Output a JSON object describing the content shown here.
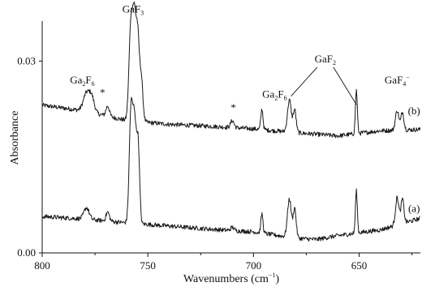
{
  "chart_data": {
    "type": "line",
    "xlabel": "Wavenumbers (cm",
    "xlabel_sup": "−1",
    "xlabel_close": ")",
    "ylabel": "Absorbance",
    "xlim": [
      800,
      621
    ],
    "ylim": [
      0.0,
      0.036
    ],
    "x_reversed": true,
    "grid": false,
    "legend": "none",
    "x_ticks": [
      800,
      750,
      700,
      650
    ],
    "x_tick_labels": [
      "800",
      "750",
      "700",
      "650"
    ],
    "y_ticks": [
      0.0,
      0.03
    ],
    "y_tick_labels": [
      "0.00",
      "0.03"
    ],
    "line_color": "#1a1a1a",
    "series": [
      {
        "label": "(b)",
        "baseline": [
          [
            800,
            0.0231
          ],
          [
            780,
            0.0222
          ],
          [
            760,
            0.0207
          ],
          [
            740,
            0.0201
          ],
          [
            720,
            0.0198
          ],
          [
            700,
            0.0194
          ],
          [
            680,
            0.0188
          ],
          [
            660,
            0.0183
          ],
          [
            640,
            0.0191
          ],
          [
            621,
            0.0193
          ]
        ],
        "peaks": [
          [
            779,
            0.0028,
            1.5
          ],
          [
            776.5,
            0.0022,
            1.2
          ],
          [
            769,
            0.0016,
            0.8
          ],
          [
            758,
            0.0152,
            0.9
          ],
          [
            756.3,
            0.0146,
            0.8
          ],
          [
            754.8,
            0.0118,
            0.7
          ],
          [
            753.2,
            0.0072,
            0.8
          ],
          [
            710,
            0.0011,
            0.8
          ],
          [
            696,
            0.0032,
            0.5
          ],
          [
            683,
            0.005,
            0.9
          ],
          [
            680.5,
            0.0035,
            0.7
          ],
          [
            651.3,
            0.0068,
            0.45
          ],
          [
            632,
            0.0031,
            0.8
          ],
          [
            629.5,
            0.0028,
            0.7
          ]
        ]
      },
      {
        "label": "(a)",
        "baseline": [
          [
            800,
            0.0057
          ],
          [
            780,
            0.0053
          ],
          [
            760,
            0.0047
          ],
          [
            740,
            0.0042
          ],
          [
            720,
            0.0037
          ],
          [
            700,
            0.0033
          ],
          [
            680,
            0.0023
          ],
          [
            670,
            0.0021
          ],
          [
            660,
            0.0027
          ],
          [
            640,
            0.0036
          ],
          [
            621,
            0.0054
          ]
        ],
        "peaks": [
          [
            779,
            0.0018,
            1.2
          ],
          [
            769,
            0.0014,
            0.8
          ],
          [
            758,
            0.0173,
            0.8
          ],
          [
            756.3,
            0.0155,
            0.8
          ],
          [
            754.6,
            0.0122,
            0.7
          ],
          [
            710,
            0.0005,
            0.8
          ],
          [
            696,
            0.003,
            0.5
          ],
          [
            683,
            0.006,
            0.9
          ],
          [
            680.5,
            0.0046,
            0.7
          ],
          [
            651.3,
            0.0066,
            0.45
          ],
          [
            632,
            0.0043,
            0.8
          ],
          [
            629.5,
            0.0038,
            0.7
          ]
        ]
      }
    ],
    "annotations": [
      {
        "id": "ga2f6-left",
        "text": "Ga",
        "sub": "2",
        "text2": "F",
        "sub2": "6",
        "x": 781,
        "y": 0.0265
      },
      {
        "id": "star-left",
        "text": "*",
        "x": 771.5,
        "y": 0.0245
      },
      {
        "id": "gaf3",
        "text": "GaF",
        "sub": "3",
        "text2": "",
        "sub2": "",
        "x": 757,
        "y": 0.0376
      },
      {
        "id": "star-mid",
        "text": "*",
        "x": 709.5,
        "y": 0.0222
      },
      {
        "id": "ga2f6-right",
        "text": "Ga",
        "sub": "2",
        "text2": "F",
        "sub2": "6",
        "x": 690,
        "y": 0.0243
      },
      {
        "id": "gaf2",
        "text": "GaF",
        "sub": "2",
        "text2": "",
        "sub2": "",
        "x": 666,
        "y": 0.0298
      },
      {
        "id": "gaf4",
        "text": "GaF",
        "sub": "4",
        "sup": "−",
        "text2": "",
        "sub2": "",
        "x": 632,
        "y": 0.0265
      },
      {
        "id": "label-b",
        "text": "(b)",
        "x": 624,
        "y": 0.0217
      },
      {
        "id": "label-a",
        "text": "(a)",
        "x": 624,
        "y": 0.0064
      }
    ]
  }
}
